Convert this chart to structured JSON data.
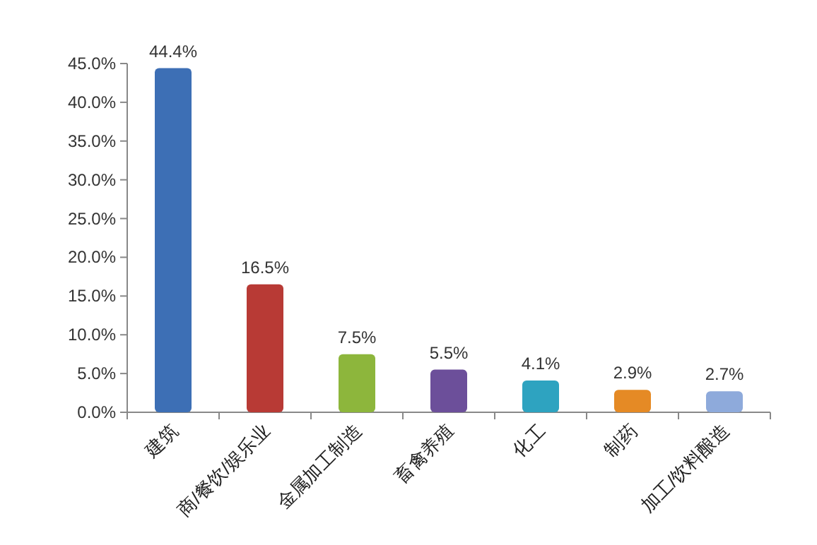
{
  "chart_data": {
    "type": "bar",
    "categories": [
      "建筑",
      "商/餐饮/娱乐业",
      "金属加工制造",
      "畜禽养殖",
      "化工",
      "制药",
      "加工/饮料酿造"
    ],
    "values": [
      44.4,
      16.5,
      7.5,
      5.5,
      4.1,
      2.9,
      2.7
    ],
    "colors": [
      "#3d6fb5",
      "#b83a35",
      "#8db63c",
      "#6c4f9a",
      "#2ea3c0",
      "#e58a25",
      "#8eaadb"
    ],
    "value_labels": [
      "44.4%",
      "16.5%",
      "7.5%",
      "5.5%",
      "4.1%",
      "2.9%",
      "2.7%"
    ],
    "ylim": [
      0,
      45
    ],
    "yticks": [
      {
        "value": 0,
        "label": "0.0%"
      },
      {
        "value": 5,
        "label": "5.0%"
      },
      {
        "value": 10,
        "label": "10.0%"
      },
      {
        "value": 15,
        "label": "15.0%"
      },
      {
        "value": 20,
        "label": "20.0%"
      },
      {
        "value": 25,
        "label": "25.0%"
      },
      {
        "value": 30,
        "label": "30.0%"
      },
      {
        "value": 35,
        "label": "35.0%"
      },
      {
        "value": 40,
        "label": "40.0%"
      },
      {
        "value": 45,
        "label": "45.0%"
      }
    ]
  }
}
